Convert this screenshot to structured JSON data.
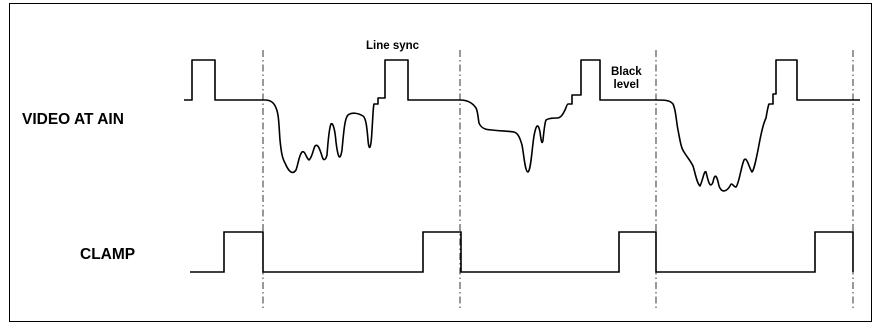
{
  "signals": {
    "video": {
      "label": "VIDEO AT AIN"
    },
    "clamp": {
      "label": "CLAMP"
    }
  },
  "annotations": {
    "line_sync": "Line sync",
    "black_level_line1": "Black",
    "black_level_line2": "level"
  },
  "colors": {
    "stroke": "#000000",
    "background": "#ffffff"
  }
}
